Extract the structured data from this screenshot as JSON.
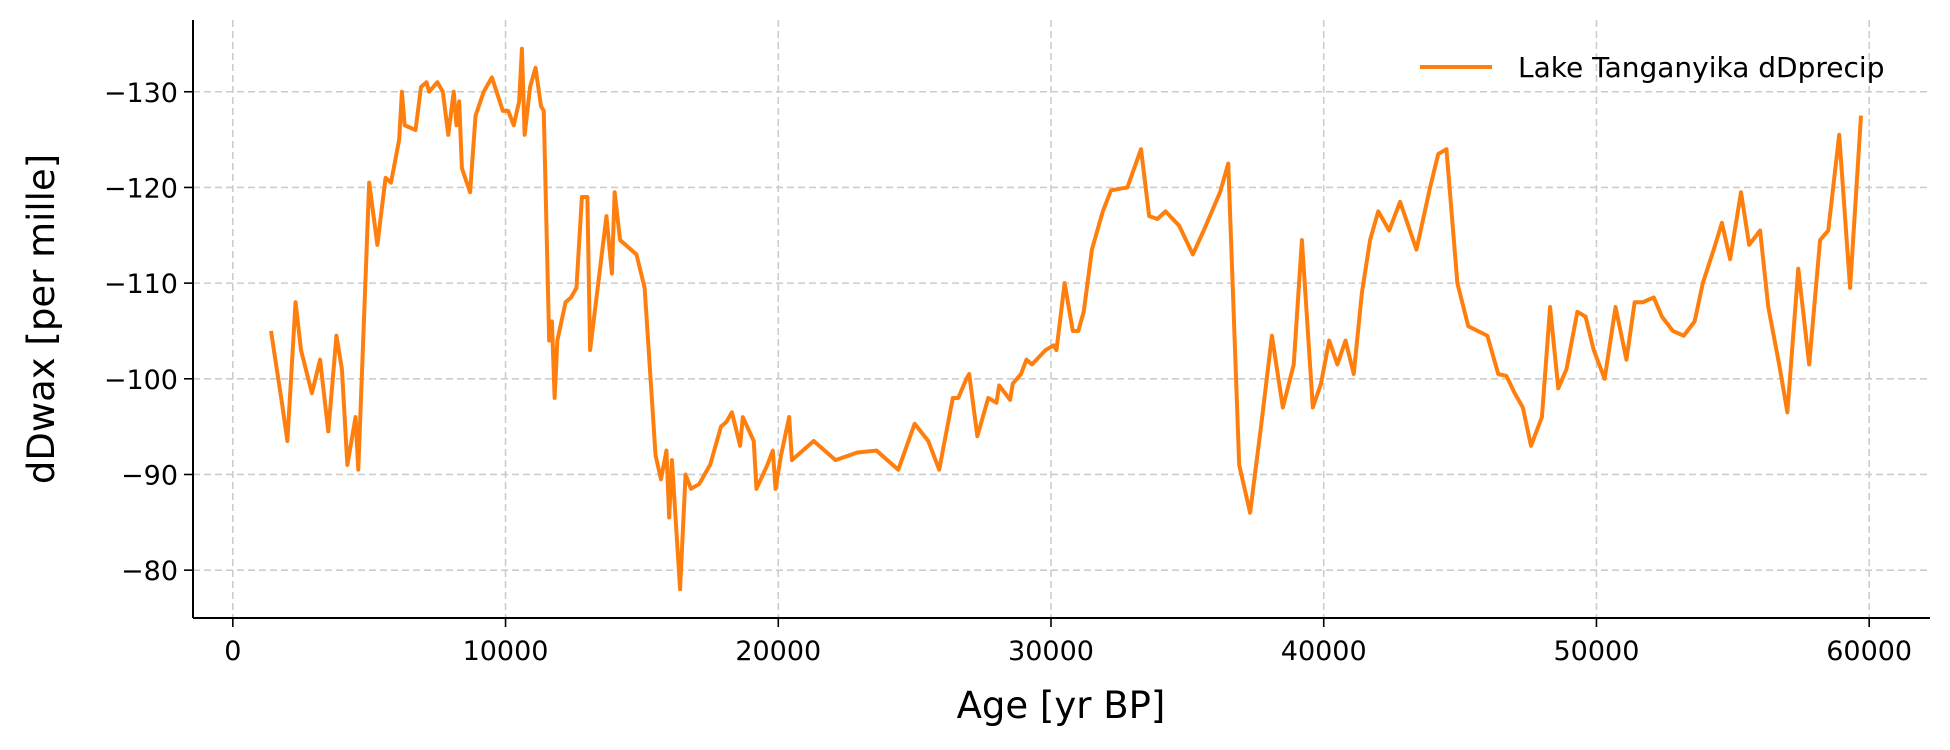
{
  "chart_data": {
    "type": "line",
    "xlabel": "Age [yr BP]",
    "ylabel": "dDwax [per mille]",
    "x": [
      1400,
      1800,
      2000,
      2300,
      2500,
      2900,
      3200,
      3500,
      3800,
      4000,
      4200,
      4500,
      4600,
      5000,
      5300,
      5600,
      5800,
      6100,
      6200,
      6300,
      6700,
      6900,
      7100,
      7200,
      7500,
      7700,
      7900,
      8100,
      8200,
      8300,
      8400,
      8700,
      8900,
      9200,
      9500,
      9900,
      10100,
      10300,
      10500,
      10600,
      10700,
      10900,
      11100,
      11300,
      11400,
      11600,
      11700,
      11800,
      11900,
      12200,
      12400,
      12600,
      12800,
      13000,
      13100,
      13400,
      13700,
      13900,
      14000,
      14200,
      14800,
      15100,
      15500,
      15700,
      15900,
      16000,
      16100,
      16400,
      16600,
      16800,
      17100,
      17500,
      17900,
      18100,
      18300,
      18600,
      18700,
      19100,
      19200,
      19600,
      19800,
      19900,
      20100,
      20400,
      20500,
      21300,
      22100,
      22900,
      23600,
      24400,
      25000,
      25500,
      25900,
      26400,
      26600,
      26900,
      27000,
      27300,
      27700,
      28000,
      28100,
      28500,
      28600,
      28900,
      29100,
      29300,
      29800,
      30100,
      30200,
      30500,
      30800,
      31000,
      31200,
      31500,
      31900,
      32200,
      32800,
      33300,
      33600,
      33900,
      34200,
      34700,
      35200,
      35600,
      36200,
      36500,
      36900,
      37300,
      37700,
      38100,
      38500,
      38900,
      39200,
      39600,
      39900,
      40200,
      40500,
      40800,
      41100,
      41400,
      41700,
      42000,
      42400,
      42800,
      43400,
      43900,
      44200,
      44500,
      44900,
      45300,
      46000,
      46400,
      46700,
      47000,
      47300,
      47600,
      48000,
      48300,
      48600,
      48900,
      49300,
      49600,
      49900,
      50300,
      50700,
      51100,
      51400,
      51700,
      52100,
      52400,
      52800,
      53200,
      53600,
      53900,
      54300,
      54600,
      54900,
      55300,
      55600,
      56000,
      56300,
      56700,
      57000,
      57400,
      57800,
      58200,
      58500,
      58900,
      59300,
      59700
    ],
    "series": [
      {
        "name": "Lake Tanganyika dDprecip",
        "color": "#ff7f0e",
        "values": [
          -105,
          -97.5,
          -93.5,
          -108,
          -103,
          -98.5,
          -102,
          -94.5,
          -104.5,
          -101,
          -91,
          -96,
          -90.5,
          -120.5,
          -114,
          -121,
          -120.5,
          -125,
          -130,
          -126.5,
          -126,
          -130.5,
          -131,
          -130,
          -131,
          -130,
          -125.5,
          -130,
          -126.5,
          -129,
          -122,
          -119.5,
          -127.5,
          -130,
          -131.5,
          -128,
          -128,
          -126.5,
          -129,
          -134.5,
          -125.5,
          -130.5,
          -132.5,
          -128.5,
          -128,
          -104,
          -106,
          -98,
          -104,
          -108,
          -108.5,
          -109.5,
          -119,
          -119,
          -103,
          -110,
          -117,
          -111,
          -119.5,
          -114.5,
          -113,
          -109.5,
          -92,
          -89.5,
          -92.5,
          -85.5,
          -91.5,
          -78,
          -90,
          -88.5,
          -89,
          -91,
          -95,
          -95.5,
          -96.5,
          -93,
          -96,
          -93.5,
          -88.5,
          -91,
          -92.5,
          -88.5,
          -92,
          -96,
          -91.5,
          -93.5,
          -91.5,
          -92.3,
          -92.5,
          -90.5,
          -95.3,
          -93.5,
          -90.5,
          -98,
          -98,
          -100,
          -100.5,
          -94,
          -98,
          -97.5,
          -99.3,
          -97.8,
          -99.5,
          -100.5,
          -102,
          -101.5,
          -103,
          -103.5,
          -103,
          -110,
          -105,
          -105,
          -107,
          -113.5,
          -117.5,
          -119.7,
          -120,
          -124,
          -117,
          -116.7,
          -117.5,
          -116,
          -113,
          -115.5,
          -119.5,
          -122.5,
          -91,
          -86,
          -95,
          -104.5,
          -97,
          -101.5,
          -114.5,
          -97,
          -99.5,
          -104,
          -101.5,
          -104,
          -100.5,
          -109,
          -114.5,
          -117.5,
          -115.5,
          -118.5,
          -113.5,
          -120,
          -123.5,
          -124,
          -110,
          -105.5,
          -104.5,
          -100.5,
          -100.3,
          -98.5,
          -97,
          -93,
          -96,
          -107.5,
          -99,
          -101,
          -107,
          -106.5,
          -103,
          -100,
          -107.5,
          -102,
          -108,
          -108,
          -108.5,
          -106.5,
          -105,
          -104.5,
          -106,
          -110,
          -113.5,
          -116.3,
          -112.5,
          -119.5,
          -114,
          -115.5,
          -107.5,
          -101.5,
          -96.5,
          -111.5,
          -101.5,
          -114.5,
          -115.5,
          -125.5,
          -109.5,
          -127.5
        ]
      }
    ],
    "xlim": [
      -1460,
      62230
    ],
    "xticks": [
      0,
      10000,
      20000,
      30000,
      40000,
      50000,
      60000
    ],
    "ylim": [
      -75,
      -137.5
    ],
    "yticks": [
      {
        "value": -130,
        "label": "−130"
      },
      {
        "value": -120,
        "label": "−120"
      },
      {
        "value": -110,
        "label": "−110"
      },
      {
        "value": -100,
        "label": "−100"
      },
      {
        "value": -90,
        "label": "−90"
      },
      {
        "value": -80,
        "label": "−80"
      }
    ],
    "grid": true,
    "legend": "upper right"
  }
}
